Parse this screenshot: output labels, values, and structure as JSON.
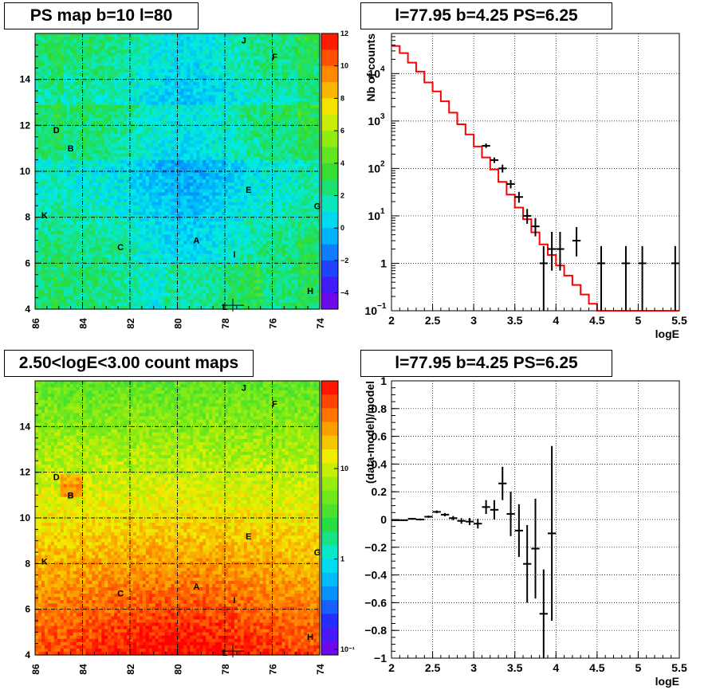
{
  "panels": {
    "ps_map_title": "PS map b=10 l=80",
    "spectrum_title": "l=77.95 b=4.25 PS=6.25",
    "count_map_title": "2.50<logE<3.00 count maps",
    "residual_title": "l=77.95 b=4.25 PS=6.25"
  },
  "colors": {
    "model": "#ff0000",
    "data": "#000000",
    "grid": "#000000"
  },
  "chart_data": [
    {
      "type": "heatmap",
      "title": "PS map b=10 l=80",
      "x_ticks": [
        "86",
        "84",
        "82",
        "80",
        "78",
        "76",
        "74"
      ],
      "y_ticks": [
        "4",
        "6",
        "8",
        "10",
        "12",
        "14"
      ],
      "xlim": [
        86,
        74
      ],
      "ylim": [
        4,
        16
      ],
      "colorbar_ticks": [
        "12",
        "10",
        "8",
        "6",
        "4",
        "2",
        "0",
        "−2",
        "−4"
      ],
      "zlim": [
        -5,
        12
      ],
      "source_labels": [
        {
          "name": "J",
          "l": 77.2,
          "b": 15.7
        },
        {
          "name": "F",
          "l": 75.9,
          "b": 15.0
        },
        {
          "name": "D",
          "l": 85.1,
          "b": 11.8
        },
        {
          "name": "B",
          "l": 84.5,
          "b": 11.0
        },
        {
          "name": "E",
          "l": 77.0,
          "b": 9.2
        },
        {
          "name": "G",
          "l": 74.1,
          "b": 8.5
        },
        {
          "name": "K",
          "l": 85.6,
          "b": 8.1
        },
        {
          "name": "A",
          "l": 79.2,
          "b": 7.0
        },
        {
          "name": "C",
          "l": 82.4,
          "b": 6.7
        },
        {
          "name": "I",
          "l": 77.6,
          "b": 6.4
        },
        {
          "name": "H",
          "l": 74.4,
          "b": 4.8
        },
        {
          "name": "L",
          "l": 78.0,
          "b": 4.1
        }
      ],
      "grid": true
    },
    {
      "type": "line",
      "title": "l=77.95 b=4.25 PS=6.25",
      "xlabel": "logE",
      "ylabel": "Nb of counts",
      "y_scale": "log",
      "xlim": [
        2,
        5.5
      ],
      "ylim": [
        0.1,
        70000
      ],
      "x_ticks": [
        "2",
        "2.5",
        "3",
        "3.5",
        "4",
        "4.5",
        "5",
        "5.5"
      ],
      "y_tick_exponents": [
        "−1",
        "0",
        "1",
        "2",
        "3",
        "4"
      ],
      "series": [
        {
          "kind": "model-step",
          "bin_edges": [
            2.0,
            2.1,
            2.2,
            2.3,
            2.4,
            2.5,
            2.6,
            2.7,
            2.8,
            2.9,
            3.0,
            3.1,
            3.2,
            3.3,
            3.4,
            3.5,
            3.6,
            3.7,
            3.8,
            3.9,
            4.0,
            4.1,
            4.2,
            4.3,
            4.4,
            4.5,
            4.6,
            4.7,
            4.8,
            4.9,
            5.0,
            5.1,
            5.2,
            5.3,
            5.4,
            5.5
          ],
          "values": [
            38000,
            27000,
            17000,
            11000,
            6500,
            4200,
            2600,
            1500,
            850,
            520,
            290,
            170,
            95,
            52,
            28,
            15,
            8.5,
            4.5,
            2.5,
            1.5,
            0.9,
            0.55,
            0.35,
            0.22,
            0.14,
            0.1,
            0.1,
            0.1,
            0.1,
            0.1,
            0.1,
            0.1,
            0.1,
            0.1,
            0.1
          ]
        },
        {
          "kind": "data-points",
          "points": [
            {
              "x": 3.15,
              "y": 300,
              "lo": 270,
              "hi": 335
            },
            {
              "x": 3.25,
              "y": 150,
              "lo": 130,
              "hi": 170
            },
            {
              "x": 3.35,
              "y": 100,
              "lo": 82,
              "hi": 120
            },
            {
              "x": 3.45,
              "y": 47,
              "lo": 38,
              "hi": 57
            },
            {
              "x": 3.55,
              "y": 25,
              "lo": 19,
              "hi": 32
            },
            {
              "x": 3.65,
              "y": 10,
              "lo": 6.8,
              "hi": 14
            },
            {
              "x": 3.75,
              "y": 6,
              "lo": 3.7,
              "hi": 9
            },
            {
              "x": 3.85,
              "y": 1,
              "lo": 0.1,
              "hi": 2.3
            },
            {
              "x": 3.95,
              "y": 2,
              "lo": 0.7,
              "hi": 4.6
            },
            {
              "x": 4.05,
              "y": 2,
              "lo": 0.7,
              "hi": 4.6
            },
            {
              "x": 4.25,
              "y": 3,
              "lo": 1.4,
              "hi": 5.8
            },
            {
              "x": 4.55,
              "y": 1,
              "lo": 0.1,
              "hi": 2.3
            },
            {
              "x": 4.85,
              "y": 1,
              "lo": 0.1,
              "hi": 2.3
            },
            {
              "x": 5.05,
              "y": 1,
              "lo": 0.1,
              "hi": 2.3
            },
            {
              "x": 5.45,
              "y": 1,
              "lo": 0.1,
              "hi": 2.3
            }
          ]
        }
      ],
      "grid": true
    },
    {
      "type": "heatmap",
      "title": "2.50<logE<3.00 count maps",
      "x_ticks": [
        "86",
        "84",
        "82",
        "80",
        "78",
        "76",
        "74"
      ],
      "y_ticks": [
        "4",
        "6",
        "8",
        "10",
        "12",
        "14"
      ],
      "xlim": [
        86,
        74
      ],
      "ylim": [
        4,
        16
      ],
      "colorbar_ticks": [
        "10",
        "1",
        "10⁻¹"
      ],
      "z_scale": "log",
      "source_labels": [
        {
          "name": "J",
          "l": 77.2,
          "b": 15.7
        },
        {
          "name": "F",
          "l": 75.9,
          "b": 15.0
        },
        {
          "name": "D",
          "l": 85.1,
          "b": 11.8
        },
        {
          "name": "B",
          "l": 84.5,
          "b": 11.0
        },
        {
          "name": "E",
          "l": 77.0,
          "b": 9.2
        },
        {
          "name": "G",
          "l": 74.1,
          "b": 8.5
        },
        {
          "name": "K",
          "l": 85.6,
          "b": 8.1
        },
        {
          "name": "A",
          "l": 79.2,
          "b": 7.0
        },
        {
          "name": "C",
          "l": 82.4,
          "b": 6.7
        },
        {
          "name": "I",
          "l": 77.6,
          "b": 6.4
        },
        {
          "name": "H",
          "l": 74.4,
          "b": 4.8
        },
        {
          "name": "L",
          "l": 78.0,
          "b": 4.1
        }
      ],
      "grid": true
    },
    {
      "type": "scatter",
      "title": "l=77.95 b=4.25 PS=6.25",
      "xlabel": "logE",
      "ylabel": "(data-model)/model",
      "xlim": [
        2,
        5.5
      ],
      "ylim": [
        -1,
        1
      ],
      "x_ticks": [
        "2",
        "2.5",
        "3",
        "3.5",
        "4",
        "4.5",
        "5",
        "5.5"
      ],
      "y_ticks": [
        "1",
        "0.8",
        "0.6",
        "0.4",
        "0.2",
        "0",
        "−0.2",
        "−0.4",
        "−0.6",
        "−0.8",
        "−1"
      ],
      "points": [
        {
          "x": 2.05,
          "y": -0.005,
          "err": 0.005
        },
        {
          "x": 2.15,
          "y": -0.005,
          "err": 0.005
        },
        {
          "x": 2.25,
          "y": 0.005,
          "err": 0.006
        },
        {
          "x": 2.35,
          "y": 0.0,
          "err": 0.007
        },
        {
          "x": 2.45,
          "y": 0.02,
          "err": 0.008
        },
        {
          "x": 2.55,
          "y": 0.055,
          "err": 0.01
        },
        {
          "x": 2.65,
          "y": 0.035,
          "err": 0.012
        },
        {
          "x": 2.75,
          "y": 0.01,
          "err": 0.015
        },
        {
          "x": 2.85,
          "y": -0.01,
          "err": 0.02
        },
        {
          "x": 2.95,
          "y": -0.015,
          "err": 0.025
        },
        {
          "x": 3.05,
          "y": -0.03,
          "err": 0.035
        },
        {
          "x": 3.15,
          "y": 0.09,
          "err": 0.05
        },
        {
          "x": 3.25,
          "y": 0.07,
          "err": 0.07
        },
        {
          "x": 3.35,
          "y": 0.26,
          "err": 0.12
        },
        {
          "x": 3.45,
          "y": 0.04,
          "err": 0.16
        },
        {
          "x": 3.55,
          "y": -0.08,
          "err": 0.19
        },
        {
          "x": 3.65,
          "y": -0.32,
          "err": 0.28
        },
        {
          "x": 3.75,
          "y": -0.21,
          "err": 0.36
        },
        {
          "x": 3.85,
          "y": -0.68,
          "err": 0.32
        },
        {
          "x": 3.95,
          "y": -0.1,
          "err": 0.63
        }
      ],
      "grid": true
    }
  ]
}
